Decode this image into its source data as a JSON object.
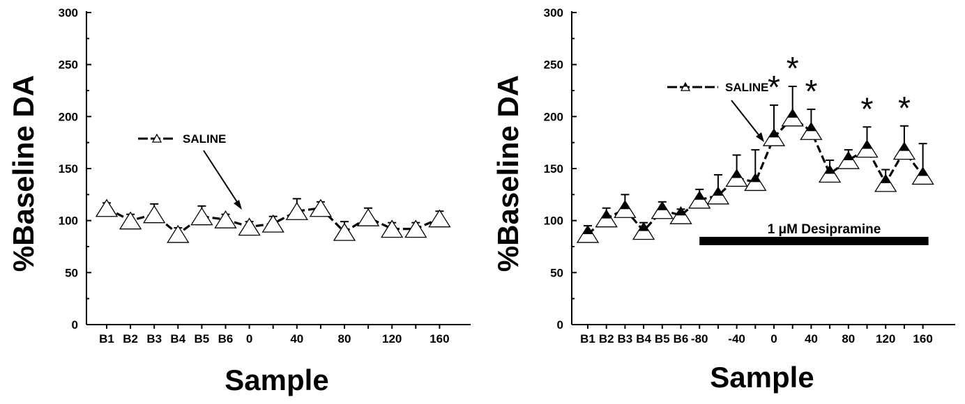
{
  "chart_data": [
    {
      "type": "line",
      "ylabel": "%Baseline DA",
      "xlabel": "Sample",
      "ylim": [
        0,
        300
      ],
      "yticks": [
        "0",
        "50",
        "100",
        "150",
        "200",
        "250",
        "300"
      ],
      "x_ticks": [
        {
          "label": "B1",
          "x": 0
        },
        {
          "label": "B2",
          "x": 1
        },
        {
          "label": "B3",
          "x": 2
        },
        {
          "label": "B4",
          "x": 3
        },
        {
          "label": "B5",
          "x": 4
        },
        {
          "label": "B6",
          "x": 5
        },
        {
          "label": "0",
          "x": 6
        },
        {
          "label": "40",
          "x": 8
        },
        {
          "label": "80",
          "x": 10
        },
        {
          "label": "120",
          "x": 12
        },
        {
          "label": "160",
          "x": 14
        }
      ],
      "series": [
        {
          "name": "SALINE",
          "marker": "open-triangle",
          "x": [
            0,
            1,
            2,
            3,
            4,
            5,
            6,
            7,
            8,
            9,
            10,
            11,
            12,
            13,
            14
          ],
          "values": [
            112,
            100,
            106,
            87,
            104,
            101,
            94,
            97,
            109,
            112,
            89,
            103,
            92,
            92,
            102
          ],
          "error": [
            5,
            6,
            10,
            6,
            10,
            5,
            5,
            7,
            12,
            6,
            10,
            9,
            6,
            6,
            7
          ]
        }
      ],
      "legend": {
        "label": "SALINE",
        "placement": "top-left"
      }
    },
    {
      "type": "line",
      "ylabel": "%Baseline DA",
      "xlabel": "Sample",
      "ylim": [
        0,
        300
      ],
      "yticks": [
        "0",
        "50",
        "100",
        "150",
        "200",
        "250",
        "300"
      ],
      "x_ticks": [
        {
          "label": "B1",
          "x": 0
        },
        {
          "label": "B2",
          "x": 1
        },
        {
          "label": "B3",
          "x": 2
        },
        {
          "label": "B4",
          "x": 3
        },
        {
          "label": "B5",
          "x": 4
        },
        {
          "label": "B6",
          "x": 5
        },
        {
          "label": "-80",
          "x": 6
        },
        {
          "label": "-40",
          "x": 8
        },
        {
          "label": "0",
          "x": 10
        },
        {
          "label": "40",
          "x": 12
        },
        {
          "label": "80",
          "x": 14
        },
        {
          "label": "120",
          "x": 16
        },
        {
          "label": "160",
          "x": 18
        }
      ],
      "series": [
        {
          "name": "SALINE",
          "marker": "half-filled-triangle",
          "x": [
            0,
            1,
            2,
            3,
            4,
            5,
            6,
            7,
            8,
            9,
            10,
            11,
            12,
            13,
            14,
            15,
            16,
            17,
            18
          ],
          "values": [
            87,
            102,
            111,
            90,
            110,
            105,
            120,
            124,
            141,
            137,
            180,
            199,
            186,
            145,
            158,
            169,
            136,
            167,
            143
          ],
          "error": [
            8,
            10,
            14,
            8,
            8,
            6,
            10,
            20,
            22,
            31,
            31,
            30,
            21,
            13,
            10,
            21,
            13,
            24,
            31
          ]
        }
      ],
      "legend": {
        "label": "SALINE",
        "placement": "top-center"
      },
      "annotations": {
        "treatment_bar": {
          "label": "1 μM Desipramine",
          "x_start": 6,
          "x_end": 18.3
        },
        "significance_symbol": "*",
        "significant_x": [
          10,
          11,
          12,
          15,
          17
        ]
      }
    }
  ]
}
